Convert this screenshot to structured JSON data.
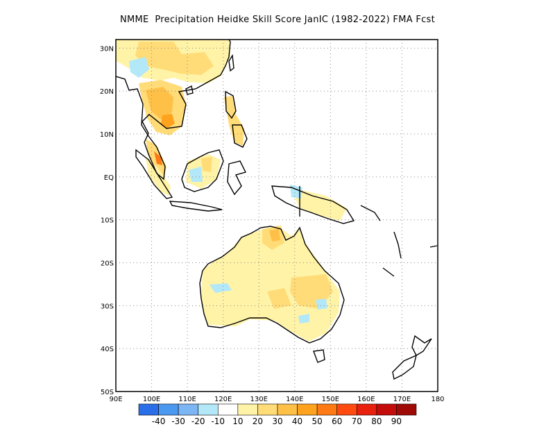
{
  "title": "NMME  Precipitation Heidke Skill Score JanIC (1982-2022) FMA Fcst",
  "map": {
    "lon_range": [
      90,
      180
    ],
    "lat_range": [
      -50,
      32
    ],
    "lat_ticks": [
      {
        "value": 30,
        "label": "30N"
      },
      {
        "value": 20,
        "label": "20N"
      },
      {
        "value": 10,
        "label": "10N"
      },
      {
        "value": 0,
        "label": "EQ"
      },
      {
        "value": -10,
        "label": "10S"
      },
      {
        "value": -20,
        "label": "20S"
      },
      {
        "value": -30,
        "label": "30S"
      },
      {
        "value": -40,
        "label": "40S"
      },
      {
        "value": -50,
        "label": "50S"
      }
    ],
    "lon_ticks": [
      {
        "value": 90,
        "label": "90E"
      },
      {
        "value": 100,
        "label": "100E"
      },
      {
        "value": 110,
        "label": "110E"
      },
      {
        "value": 120,
        "label": "120E"
      },
      {
        "value": 130,
        "label": "130E"
      },
      {
        "value": 140,
        "label": "140E"
      },
      {
        "value": 150,
        "label": "150E"
      },
      {
        "value": 160,
        "label": "160E"
      },
      {
        "value": 170,
        "label": "170E"
      },
      {
        "value": 180,
        "label": "180"
      }
    ]
  },
  "colorbar": {
    "colors": [
      "#2a6ee8",
      "#4a98f0",
      "#7db6f4",
      "#b3e8f8",
      "#ffffff",
      "#fff3a8",
      "#ffdc78",
      "#ffc048",
      "#ffa21e",
      "#ff7a14",
      "#ff4a10",
      "#e8200e",
      "#c40c0a",
      "#a00a06"
    ],
    "labels": [
      "-40",
      "-30",
      "-20",
      "-10",
      "10",
      "20",
      "30",
      "40",
      "50",
      "60",
      "70",
      "80",
      "90"
    ]
  }
}
